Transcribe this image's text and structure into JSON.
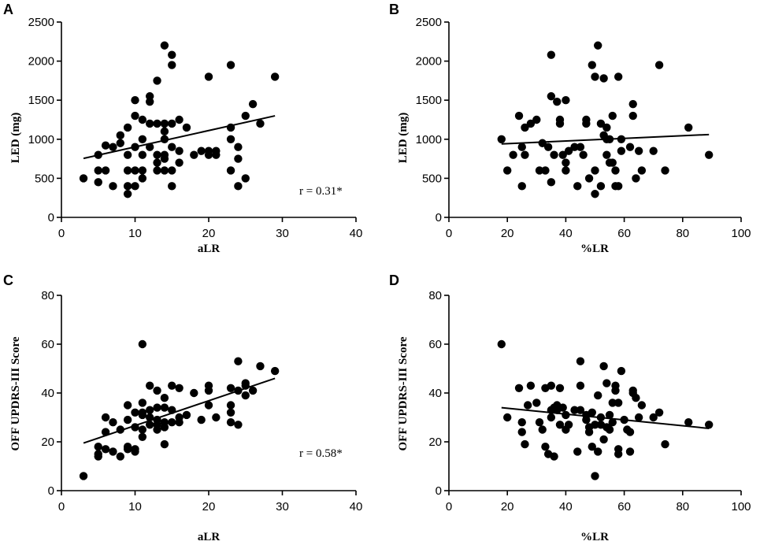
{
  "chart_data": [
    {
      "panel": "A",
      "type": "scatter",
      "xlabel": "aLR",
      "ylabel": "LED (mg)",
      "xlim": [
        0,
        40
      ],
      "ylim": [
        0,
        2500
      ],
      "xticks": [
        "0",
        "10",
        "20",
        "30",
        "40"
      ],
      "yticks": [
        "0",
        "500",
        "1000",
        "1500",
        "2000",
        "2500"
      ],
      "annotation": "r = 0.31*",
      "fit_line": [
        [
          3,
          755
        ],
        [
          29,
          1300
        ]
      ],
      "points": [
        [
          3,
          500
        ],
        [
          5,
          450
        ],
        [
          5,
          600
        ],
        [
          5,
          800
        ],
        [
          6,
          600
        ],
        [
          6,
          920
        ],
        [
          7,
          400
        ],
        [
          7,
          900
        ],
        [
          8,
          950
        ],
        [
          8,
          1050
        ],
        [
          9,
          300
        ],
        [
          9,
          400
        ],
        [
          9,
          600
        ],
        [
          9,
          800
        ],
        [
          9,
          1150
        ],
        [
          10,
          400
        ],
        [
          10,
          600
        ],
        [
          10,
          900
        ],
        [
          10,
          1300
        ],
        [
          10,
          1500
        ],
        [
          11,
          500
        ],
        [
          11,
          600
        ],
        [
          11,
          800
        ],
        [
          11,
          1000
        ],
        [
          11,
          1250
        ],
        [
          12,
          900
        ],
        [
          12,
          1200
        ],
        [
          12,
          1480
        ],
        [
          12,
          1550
        ],
        [
          13,
          600
        ],
        [
          13,
          700
        ],
        [
          13,
          800
        ],
        [
          13,
          1200
        ],
        [
          13,
          1750
        ],
        [
          14,
          600
        ],
        [
          14,
          750
        ],
        [
          14,
          800
        ],
        [
          14,
          1000
        ],
        [
          14,
          1100
        ],
        [
          14,
          1200
        ],
        [
          14,
          2200
        ],
        [
          15,
          400
        ],
        [
          15,
          600
        ],
        [
          15,
          900
        ],
        [
          15,
          1200
        ],
        [
          15,
          1950
        ],
        [
          15,
          2080
        ],
        [
          16,
          700
        ],
        [
          16,
          850
        ],
        [
          16,
          1250
        ],
        [
          17,
          1150
        ],
        [
          18,
          800
        ],
        [
          19,
          850
        ],
        [
          20,
          800
        ],
        [
          20,
          850
        ],
        [
          20,
          1800
        ],
        [
          21,
          800
        ],
        [
          21,
          850
        ],
        [
          23,
          600
        ],
        [
          23,
          1000
        ],
        [
          23,
          1150
        ],
        [
          23,
          1950
        ],
        [
          24,
          400
        ],
        [
          24,
          750
        ],
        [
          24,
          900
        ],
        [
          25,
          500
        ],
        [
          25,
          1300
        ],
        [
          26,
          1450
        ],
        [
          27,
          1200
        ],
        [
          29,
          1800
        ]
      ]
    },
    {
      "panel": "B",
      "type": "scatter",
      "xlabel": "%LR",
      "ylabel": "LED (mg)",
      "xlim": [
        0,
        100
      ],
      "ylim": [
        0,
        2500
      ],
      "xticks": [
        "0",
        "20",
        "40",
        "60",
        "80",
        "100"
      ],
      "yticks": [
        "0",
        "500",
        "1000",
        "1500",
        "2000",
        "2500"
      ],
      "annotation": "",
      "fit_line": [
        [
          18,
          940
        ],
        [
          89,
          1060
        ]
      ],
      "points": [
        [
          18,
          1000
        ],
        [
          20,
          600
        ],
        [
          22,
          800
        ],
        [
          24,
          1300
        ],
        [
          25,
          400
        ],
        [
          25,
          900
        ],
        [
          26,
          800
        ],
        [
          26,
          1150
        ],
        [
          28,
          1200
        ],
        [
          30,
          1250
        ],
        [
          31,
          600
        ],
        [
          32,
          950
        ],
        [
          33,
          600
        ],
        [
          34,
          900
        ],
        [
          35,
          2080
        ],
        [
          35,
          1550
        ],
        [
          35,
          450
        ],
        [
          36,
          800
        ],
        [
          37,
          1480
        ],
        [
          38,
          1250
        ],
        [
          38,
          1200
        ],
        [
          39,
          800
        ],
        [
          40,
          1500
        ],
        [
          40,
          700
        ],
        [
          40,
          600
        ],
        [
          41,
          850
        ],
        [
          43,
          900
        ],
        [
          44,
          400
        ],
        [
          45,
          900
        ],
        [
          46,
          800
        ],
        [
          47,
          1200
        ],
        [
          47,
          1250
        ],
        [
          48,
          500
        ],
        [
          49,
          1950
        ],
        [
          50,
          600
        ],
        [
          50,
          300
        ],
        [
          50,
          1800
        ],
        [
          51,
          2200
        ],
        [
          52,
          400
        ],
        [
          52,
          1200
        ],
        [
          53,
          1780
        ],
        [
          53,
          1050
        ],
        [
          54,
          1000
        ],
        [
          54,
          800
        ],
        [
          54,
          1150
        ],
        [
          55,
          700
        ],
        [
          55,
          1000
        ],
        [
          56,
          700
        ],
        [
          56,
          1300
        ],
        [
          57,
          600
        ],
        [
          57,
          400
        ],
        [
          58,
          400
        ],
        [
          58,
          1800
        ],
        [
          59,
          1000
        ],
        [
          59,
          850
        ],
        [
          62,
          900
        ],
        [
          63,
          1300
        ],
        [
          63,
          1450
        ],
        [
          64,
          500
        ],
        [
          65,
          850
        ],
        [
          66,
          600
        ],
        [
          70,
          850
        ],
        [
          72,
          1950
        ],
        [
          74,
          600
        ],
        [
          82,
          1150
        ],
        [
          89,
          800
        ]
      ]
    },
    {
      "panel": "C",
      "type": "scatter",
      "xlabel": "aLR",
      "ylabel": "OFF UPDRS-III Score",
      "xlim": [
        0,
        40
      ],
      "ylim": [
        0,
        80
      ],
      "xticks": [
        "0",
        "10",
        "20",
        "30",
        "40"
      ],
      "yticks": [
        "0",
        "20",
        "40",
        "60",
        "80"
      ],
      "annotation": "r = 0.58*",
      "fit_line": [
        [
          3,
          19.5
        ],
        [
          29,
          46
        ]
      ],
      "points": [
        [
          3,
          6
        ],
        [
          5,
          14
        ],
        [
          5,
          15
        ],
        [
          5,
          18
        ],
        [
          6,
          17
        ],
        [
          6,
          24
        ],
        [
          6,
          30
        ],
        [
          7,
          16
        ],
        [
          7,
          28
        ],
        [
          8,
          14
        ],
        [
          8,
          25
        ],
        [
          9,
          17
        ],
        [
          9,
          18
        ],
        [
          9,
          29
        ],
        [
          9,
          35
        ],
        [
          10,
          16
        ],
        [
          10,
          17
        ],
        [
          10,
          26
        ],
        [
          10,
          32
        ],
        [
          11,
          22
        ],
        [
          11,
          25
        ],
        [
          11,
          31
        ],
        [
          11,
          32
        ],
        [
          11,
          36
        ],
        [
          11,
          60
        ],
        [
          12,
          27
        ],
        [
          12,
          30
        ],
        [
          12,
          33
        ],
        [
          12,
          43
        ],
        [
          13,
          25
        ],
        [
          13,
          27
        ],
        [
          13,
          29
        ],
        [
          13,
          34
        ],
        [
          13,
          41
        ],
        [
          14,
          19
        ],
        [
          14,
          26
        ],
        [
          14,
          28
        ],
        [
          14,
          34
        ],
        [
          14,
          38
        ],
        [
          15,
          28
        ],
        [
          15,
          33
        ],
        [
          15,
          43
        ],
        [
          16,
          28
        ],
        [
          16,
          30
        ],
        [
          16,
          42
        ],
        [
          17,
          31
        ],
        [
          18,
          40
        ],
        [
          19,
          29
        ],
        [
          20,
          35
        ],
        [
          20,
          41
        ],
        [
          20,
          43
        ],
        [
          21,
          30
        ],
        [
          23,
          28
        ],
        [
          23,
          32
        ],
        [
          23,
          35
        ],
        [
          23,
          42
        ],
        [
          24,
          27
        ],
        [
          24,
          41
        ],
        [
          24,
          53
        ],
        [
          25,
          39
        ],
        [
          25,
          43
        ],
        [
          25,
          44
        ],
        [
          26,
          41
        ],
        [
          27,
          51
        ],
        [
          29,
          49
        ]
      ]
    },
    {
      "panel": "D",
      "type": "scatter",
      "xlabel": "%LR",
      "ylabel": "OFF UPDRS-III Score",
      "xlim": [
        0,
        100
      ],
      "ylim": [
        0,
        80
      ],
      "xticks": [
        "0",
        "20",
        "40",
        "60",
        "80",
        "100"
      ],
      "yticks": [
        "0",
        "20",
        "40",
        "60",
        "80"
      ],
      "annotation": "",
      "fit_line": [
        [
          18,
          34
        ],
        [
          89,
          25.5
        ]
      ],
      "points": [
        [
          18,
          60
        ],
        [
          20,
          30
        ],
        [
          24,
          42
        ],
        [
          25,
          24
        ],
        [
          25,
          28
        ],
        [
          26,
          19
        ],
        [
          27,
          35
        ],
        [
          28,
          43
        ],
        [
          30,
          36
        ],
        [
          31,
          28
        ],
        [
          32,
          25
        ],
        [
          33,
          42
        ],
        [
          33,
          18
        ],
        [
          34,
          15
        ],
        [
          35,
          30
        ],
        [
          35,
          33
        ],
        [
          35,
          43
        ],
        [
          36,
          14
        ],
        [
          36,
          34
        ],
        [
          37,
          33
        ],
        [
          37,
          35
        ],
        [
          38,
          42
        ],
        [
          38,
          27
        ],
        [
          39,
          34
        ],
        [
          40,
          31
        ],
        [
          40,
          25
        ],
        [
          41,
          27
        ],
        [
          43,
          33
        ],
        [
          44,
          16
        ],
        [
          45,
          43
        ],
        [
          45,
          33
        ],
        [
          45,
          53
        ],
        [
          47,
          31
        ],
        [
          47,
          29
        ],
        [
          48,
          24
        ],
        [
          48,
          26
        ],
        [
          49,
          18
        ],
        [
          49,
          32
        ],
        [
          50,
          6
        ],
        [
          50,
          27
        ],
        [
          51,
          16
        ],
        [
          51,
          39
        ],
        [
          52,
          27
        ],
        [
          52,
          30
        ],
        [
          53,
          21
        ],
        [
          53,
          51
        ],
        [
          54,
          26
        ],
        [
          54,
          44
        ],
        [
          55,
          25
        ],
        [
          55,
          31
        ],
        [
          56,
          28
        ],
        [
          56,
          36
        ],
        [
          57,
          43
        ],
        [
          57,
          41
        ],
        [
          58,
          15
        ],
        [
          58,
          17
        ],
        [
          58,
          36
        ],
        [
          59,
          49
        ],
        [
          60,
          29
        ],
        [
          61,
          25
        ],
        [
          62,
          16
        ],
        [
          62,
          24
        ],
        [
          63,
          41
        ],
        [
          63,
          40
        ],
        [
          64,
          38
        ],
        [
          65,
          30
        ],
        [
          66,
          35
        ],
        [
          70,
          30
        ],
        [
          72,
          32
        ],
        [
          74,
          19
        ],
        [
          82,
          28
        ],
        [
          89,
          27
        ]
      ]
    }
  ]
}
